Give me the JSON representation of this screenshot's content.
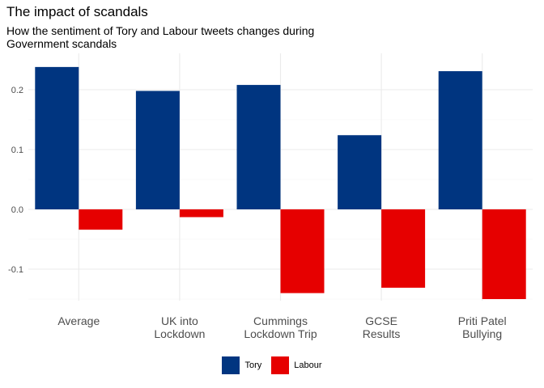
{
  "chart_data": {
    "type": "bar",
    "title": "The impact of scandals",
    "subtitle": "How the sentiment of Tory and Labour tweets changes during Government scandals",
    "categories": [
      [
        "Average"
      ],
      [
        "UK into",
        "Lockdown"
      ],
      [
        "Cummings",
        "Lockdown Trip"
      ],
      [
        "GCSE",
        "Results"
      ],
      [
        "Priti Patel",
        "Bullying"
      ]
    ],
    "series": [
      {
        "name": "Tory",
        "color": "#003580",
        "values": [
          0.238,
          0.198,
          0.208,
          0.124,
          0.231
        ]
      },
      {
        "name": "Labour",
        "color": "#e60000",
        "values": [
          -0.034,
          -0.013,
          -0.14,
          -0.131,
          -0.15
        ]
      }
    ],
    "ylim": [
      -0.15,
      0.24
    ],
    "yticks": [
      -0.1,
      0.0,
      0.1,
      0.2
    ],
    "ytick_labels": [
      "-0.1",
      "0.0",
      "0.1",
      "0.2"
    ],
    "xlabel": "",
    "ylabel": "",
    "grid": true,
    "legend": "bottom"
  }
}
